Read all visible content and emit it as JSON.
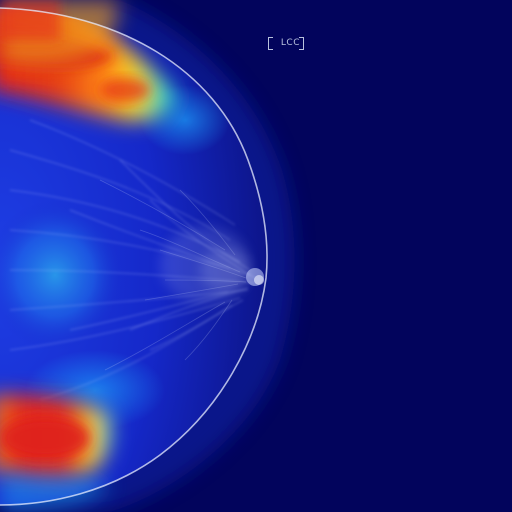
{
  "image": {
    "view_label": "LCC",
    "colormap": [
      "#02045c",
      "#1b2bd8",
      "#1da6ff",
      "#3dd8a8",
      "#f2e027",
      "#ff8c14",
      "#e5231b"
    ]
  }
}
